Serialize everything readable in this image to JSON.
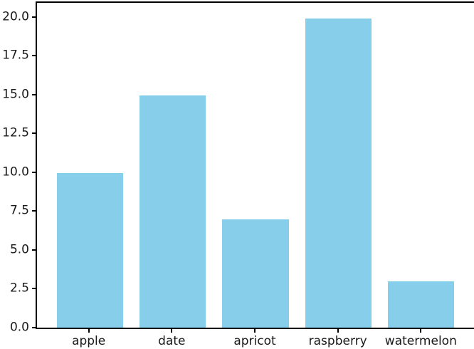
{
  "figure": {
    "background": "#ffffff",
    "title": ""
  },
  "chart_data": {
    "type": "bar",
    "categories": [
      "apple",
      "date",
      "apricot",
      "raspberry",
      "watermelon"
    ],
    "values": [
      10,
      15,
      7,
      20,
      3
    ],
    "title": "",
    "xlabel": "",
    "ylabel": "",
    "ylim": [
      0,
      21
    ],
    "ytick_labels": [
      "0.0",
      "2.5",
      "5.0",
      "7.5",
      "10.0",
      "12.5",
      "15.0",
      "17.5",
      "20.0"
    ],
    "ytick_values": [
      0,
      2.5,
      5,
      7.5,
      10,
      12.5,
      15,
      17.5,
      20
    ],
    "bar_color": "#87CEEB",
    "axis_color": "#000000",
    "text_color": "#1a1a1a",
    "grid": false,
    "legend": "none"
  }
}
